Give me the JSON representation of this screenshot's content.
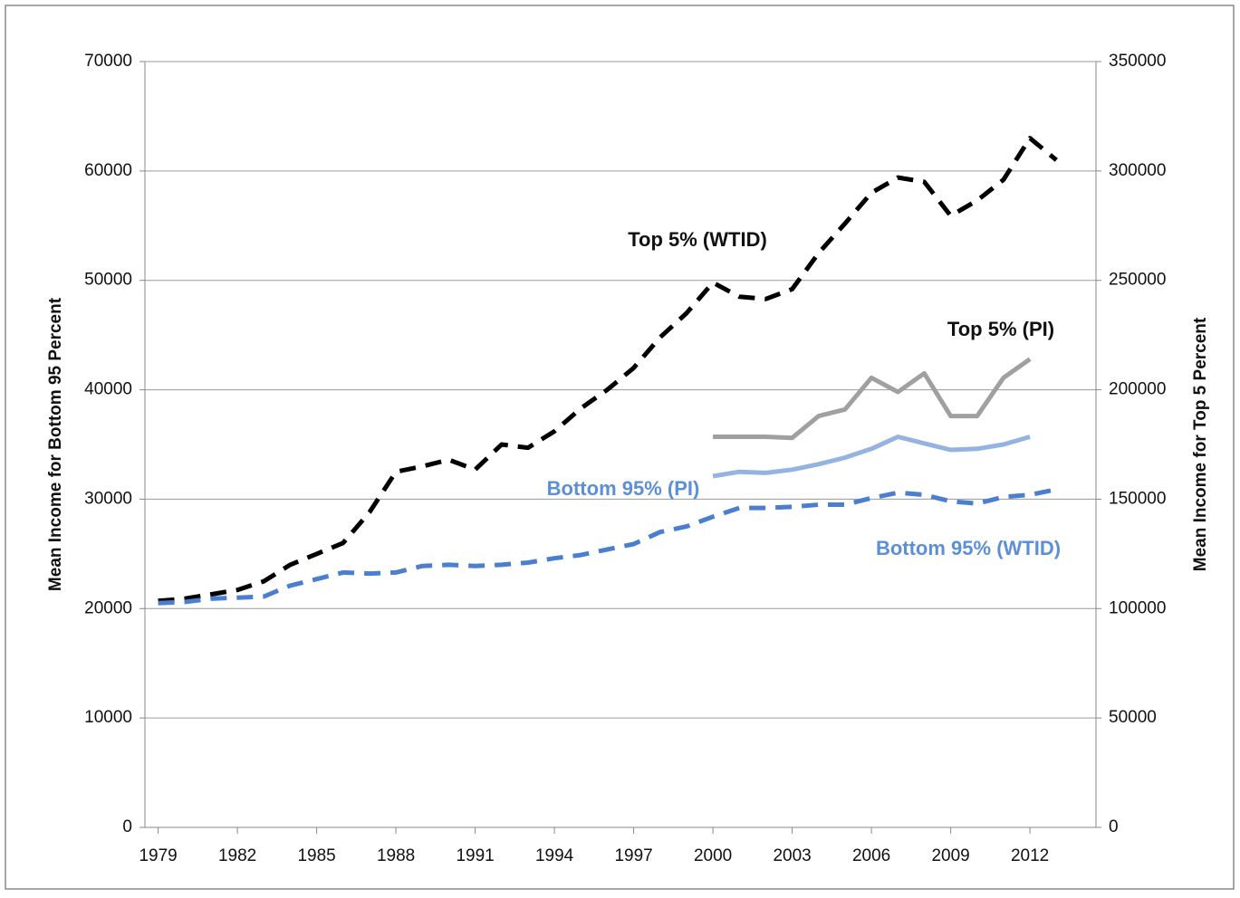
{
  "chart_data": {
    "type": "line",
    "y_label": "Mean Income for Bottom 95 Percent",
    "y2_label": "Mean Income for Top 5 Percent",
    "x": [
      1979,
      1980,
      1981,
      1982,
      1983,
      1984,
      1985,
      1986,
      1987,
      1988,
      1989,
      1990,
      1991,
      1992,
      1993,
      1994,
      1995,
      1996,
      1997,
      1998,
      1999,
      2000,
      2001,
      2002,
      2003,
      2004,
      2005,
      2006,
      2007,
      2008,
      2009,
      2010,
      2011,
      2012,
      2013
    ],
    "xlim": [
      1978.5,
      2014.5
    ],
    "xticks": [
      1979,
      1982,
      1985,
      1988,
      1991,
      1994,
      1997,
      2000,
      2003,
      2006,
      2009,
      2012
    ],
    "ylim": [
      0,
      70000
    ],
    "yticks": [
      0,
      10000,
      20000,
      30000,
      40000,
      50000,
      60000,
      70000
    ],
    "y2lim": [
      0,
      350000
    ],
    "y2ticks": [
      0,
      50000,
      100000,
      150000,
      200000,
      250000,
      300000,
      350000
    ],
    "grid": true,
    "series": [
      {
        "name": "Top 5% (WTID)",
        "color": "#000000",
        "dashed": true,
        "axis": "y2",
        "values": [
          103500,
          104500,
          106500,
          108500,
          112500,
          120000,
          125000,
          130000,
          144000,
          162500,
          165000,
          168000,
          163500,
          175000,
          173500,
          181000,
          191500,
          200000,
          210000,
          224000,
          235000,
          249000,
          242500,
          241500,
          246000,
          262500,
          276000,
          290000,
          297000,
          295000,
          279500,
          286500,
          296000,
          315000,
          305000
        ]
      },
      {
        "name": "Top 5% (PI)",
        "color": "#a0a0a0",
        "dashed": false,
        "axis": "y2",
        "values": [
          null,
          null,
          null,
          null,
          null,
          null,
          null,
          null,
          null,
          null,
          null,
          null,
          null,
          null,
          null,
          null,
          null,
          null,
          null,
          null,
          null,
          178500,
          178500,
          178500,
          178000,
          188000,
          191000,
          205500,
          199000,
          207500,
          188000,
          188000,
          205500,
          214000,
          null
        ]
      },
      {
        "name": "Bottom 95% (PI)",
        "color": "#95b3e0",
        "dashed": false,
        "values": [
          null,
          null,
          null,
          null,
          null,
          null,
          null,
          null,
          null,
          null,
          null,
          null,
          null,
          null,
          null,
          null,
          null,
          null,
          null,
          null,
          null,
          32100,
          32500,
          32400,
          32700,
          33200,
          33800,
          34600,
          35700,
          35100,
          34500,
          34600,
          35000,
          35700,
          null
        ]
      },
      {
        "name": "Bottom 95% (WTID)",
        "color": "#4a7fd0",
        "dashed": true,
        "values": [
          20500,
          20600,
          20900,
          21000,
          21100,
          22100,
          22700,
          23300,
          23200,
          23300,
          23900,
          24000,
          23900,
          24000,
          24200,
          24600,
          24900,
          25400,
          25900,
          27000,
          27500,
          28400,
          29200,
          29200,
          29300,
          29500,
          29500,
          30100,
          30600,
          30400,
          29800,
          29600,
          30200,
          30400,
          30900
        ]
      }
    ],
    "annotations": [
      {
        "text": "Top 5% (WTID)",
        "color": "#111111"
      },
      {
        "text": "Top 5% (PI)",
        "color": "#111111"
      },
      {
        "text": "Bottom 95% (PI)",
        "color": "#5b8fd6"
      },
      {
        "text": "Bottom 95% (WTID)",
        "color": "#5b8fd6"
      }
    ]
  }
}
